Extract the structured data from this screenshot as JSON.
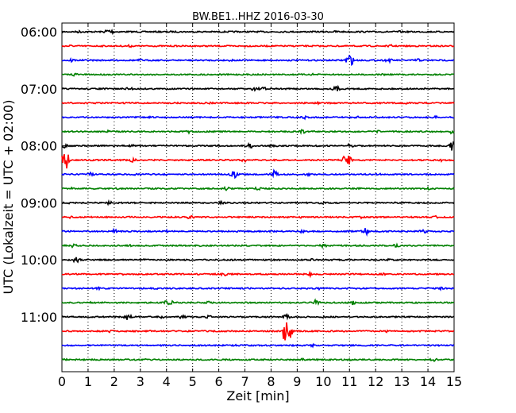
{
  "chart_data": {
    "type": "line",
    "title": "BW.BE1..HHZ 2016-03-30",
    "xlabel": "Zeit  [min]",
    "ylabel": "UTC (Lokalzeit = UTC + 02:00)",
    "xlim": [
      0,
      15
    ],
    "x_ticks": [
      "0",
      "1",
      "2",
      "3",
      "4",
      "5",
      "6",
      "7",
      "8",
      "9",
      "10",
      "11",
      "12",
      "13",
      "14",
      "15"
    ],
    "y_tick_labels": [
      "06:00",
      "07:00",
      "08:00",
      "09:00",
      "10:00",
      "11:00"
    ],
    "trace_interval_min": 15,
    "trace_colors": [
      "#000000",
      "#ff0000",
      "#0000ff",
      "#008000"
    ],
    "traces": [
      {
        "start": "06:00",
        "events": [
          [
            0.65,
            0.2
          ],
          [
            1.8,
            0.6
          ],
          [
            4.1,
            0.15
          ],
          [
            6.7,
            0.15
          ],
          [
            10.5,
            0.2
          ],
          [
            12.9,
            0.15
          ]
        ]
      },
      {
        "start": "06:15",
        "events": [
          [
            0.3,
            0.2
          ],
          [
            2.6,
            0.2
          ],
          [
            7.0,
            0.15
          ],
          [
            9.1,
            0.15
          ],
          [
            12.6,
            0.2
          ],
          [
            14.4,
            0.15
          ]
        ]
      },
      {
        "start": "06:30",
        "events": [
          [
            0.35,
            0.3
          ],
          [
            3.0,
            0.2
          ],
          [
            6.5,
            0.2
          ],
          [
            11.0,
            1.0
          ],
          [
            12.5,
            0.3
          ],
          [
            13.6,
            0.3
          ]
        ]
      },
      {
        "start": "06:45",
        "events": [
          [
            0.5,
            0.25
          ],
          [
            2.7,
            0.15
          ],
          [
            6.0,
            0.15
          ],
          [
            9.6,
            0.15
          ],
          [
            12.3,
            0.15
          ]
        ]
      },
      {
        "start": "07:00",
        "events": [
          [
            1.6,
            0.15
          ],
          [
            2.6,
            0.3
          ],
          [
            7.4,
            0.35
          ],
          [
            7.8,
            0.4
          ],
          [
            10.5,
            0.4
          ]
        ]
      },
      {
        "start": "07:15",
        "events": [
          [
            2.5,
            0.15
          ],
          [
            5.7,
            0.15
          ],
          [
            9.8,
            0.15
          ],
          [
            13.2,
            0.15
          ]
        ]
      },
      {
        "start": "07:30",
        "events": [
          [
            3.4,
            0.15
          ],
          [
            7.2,
            0.15
          ],
          [
            9.3,
            0.25
          ],
          [
            11.3,
            0.2
          ],
          [
            14.3,
            0.2
          ]
        ]
      },
      {
        "start": "07:45",
        "events": [
          [
            1.8,
            0.2
          ],
          [
            4.9,
            0.3
          ],
          [
            9.2,
            0.3
          ],
          [
            12.1,
            0.2
          ],
          [
            14.9,
            0.3
          ]
        ]
      },
      {
        "start": "08:00",
        "events": [
          [
            0.1,
            0.3
          ],
          [
            2.7,
            0.2
          ],
          [
            7.2,
            0.4
          ],
          [
            8.1,
            0.3
          ],
          [
            11.0,
            0.3
          ],
          [
            14.9,
            0.7
          ]
        ]
      },
      {
        "start": "08:15",
        "events": [
          [
            0.1,
            1.8
          ],
          [
            2.7,
            0.3
          ],
          [
            7.0,
            0.3
          ],
          [
            10.9,
            1.2
          ],
          [
            14.5,
            0.2
          ]
        ]
      },
      {
        "start": "08:30",
        "events": [
          [
            1.1,
            0.3
          ],
          [
            2.8,
            0.25
          ],
          [
            6.6,
            0.6
          ],
          [
            8.1,
            0.6
          ],
          [
            9.4,
            0.25
          ],
          [
            12.1,
            0.2
          ]
        ]
      },
      {
        "start": "08:45",
        "events": [
          [
            0.4,
            0.2
          ],
          [
            2.1,
            0.15
          ],
          [
            6.3,
            0.3
          ],
          [
            7.5,
            0.25
          ],
          [
            11.4,
            0.2
          ],
          [
            14.0,
            0.2
          ]
        ]
      },
      {
        "start": "09:00",
        "events": [
          [
            0.3,
            0.15
          ],
          [
            1.8,
            0.35
          ],
          [
            6.1,
            0.2
          ],
          [
            9.9,
            0.2
          ],
          [
            12.8,
            0.15
          ]
        ]
      },
      {
        "start": "09:15",
        "events": [
          [
            0.3,
            0.2
          ],
          [
            2.5,
            0.25
          ],
          [
            4.9,
            0.3
          ],
          [
            9.1,
            0.2
          ],
          [
            11.4,
            0.3
          ],
          [
            14.3,
            0.2
          ]
        ]
      },
      {
        "start": "09:30",
        "events": [
          [
            1.3,
            0.15
          ],
          [
            2.0,
            0.3
          ],
          [
            4.0,
            0.2
          ],
          [
            9.2,
            0.25
          ],
          [
            11.6,
            0.6
          ],
          [
            13.8,
            0.35
          ]
        ]
      },
      {
        "start": "09:45",
        "events": [
          [
            0.45,
            0.3
          ],
          [
            2.6,
            0.2
          ],
          [
            5.3,
            0.2
          ],
          [
            10.0,
            0.3
          ],
          [
            12.8,
            0.3
          ]
        ]
      },
      {
        "start": "10:00",
        "events": [
          [
            0.55,
            0.4
          ],
          [
            3.2,
            0.2
          ],
          [
            6.6,
            0.15
          ],
          [
            9.6,
            0.2
          ],
          [
            12.5,
            0.2
          ]
        ]
      },
      {
        "start": "10:15",
        "events": [
          [
            2.3,
            0.15
          ],
          [
            5.2,
            0.15
          ],
          [
            6.2,
            0.3
          ],
          [
            9.5,
            0.3
          ],
          [
            12.3,
            0.15
          ]
        ]
      },
      {
        "start": "10:30",
        "events": [
          [
            1.4,
            0.2
          ],
          [
            3.6,
            0.15
          ],
          [
            7.1,
            0.15
          ],
          [
            9.8,
            0.2
          ],
          [
            14.5,
            0.2
          ]
        ]
      },
      {
        "start": "10:45",
        "events": [
          [
            1.1,
            0.15
          ],
          [
            4.1,
            0.6
          ],
          [
            5.6,
            0.2
          ],
          [
            9.7,
            0.4
          ],
          [
            11.1,
            0.35
          ]
        ]
      },
      {
        "start": "11:00",
        "events": [
          [
            2.5,
            0.5
          ],
          [
            3.8,
            0.3
          ],
          [
            4.6,
            0.3
          ],
          [
            5.6,
            0.25
          ],
          [
            8.6,
            0.35
          ],
          [
            10.0,
            0.15
          ]
        ]
      },
      {
        "start": "11:15",
        "events": [
          [
            1.8,
            0.3
          ],
          [
            3.4,
            0.15
          ],
          [
            8.6,
            2.5
          ],
          [
            10.8,
            0.15
          ],
          [
            12.4,
            0.2
          ]
        ]
      },
      {
        "start": "11:30",
        "events": [
          [
            3.4,
            0.15
          ],
          [
            6.6,
            0.15
          ],
          [
            9.6,
            0.2
          ],
          [
            12.6,
            0.15
          ]
        ]
      },
      {
        "start": "11:45",
        "events": [
          [
            0.2,
            0.2
          ],
          [
            3.2,
            0.15
          ],
          [
            8.1,
            0.15
          ],
          [
            9.2,
            0.2
          ],
          [
            11.0,
            0.15
          ],
          [
            14.2,
            0.3
          ]
        ]
      }
    ]
  }
}
